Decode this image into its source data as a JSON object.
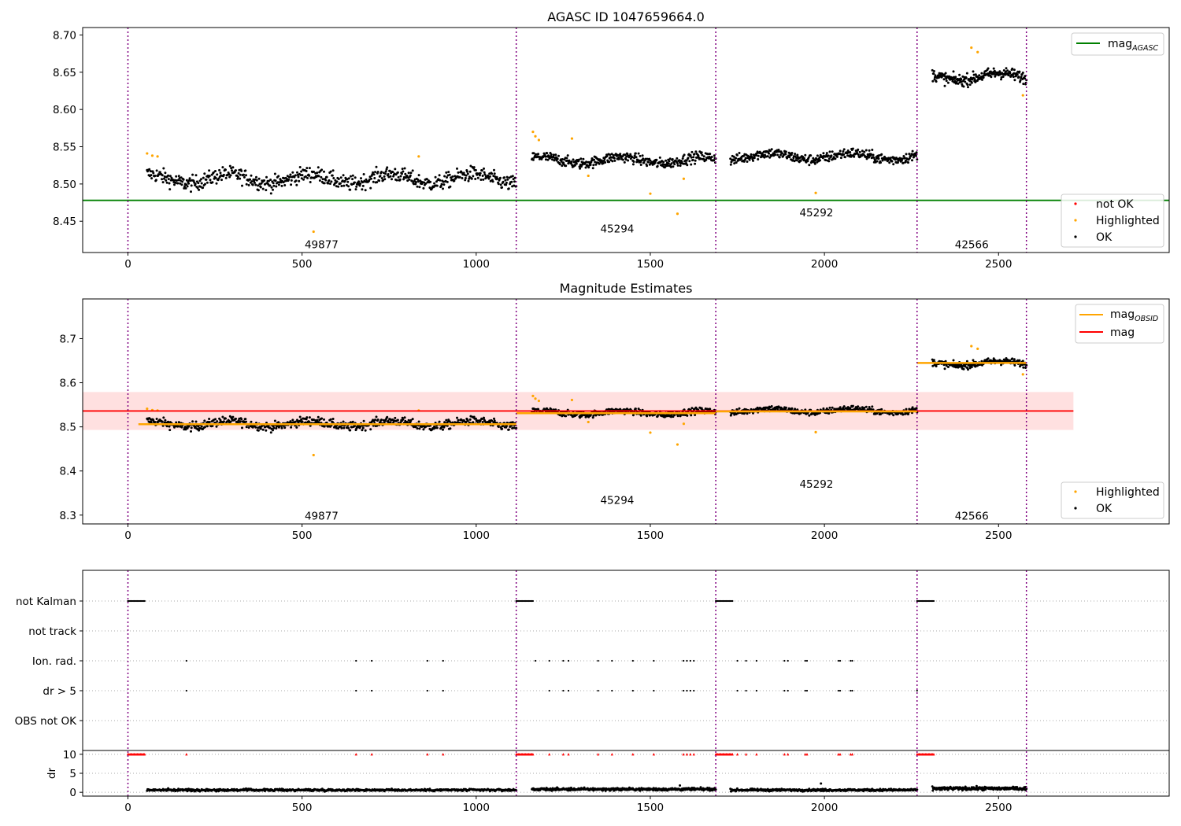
{
  "chart_data": [
    {
      "type": "scatter",
      "title": "AGASC ID 1047659664.0",
      "xlim": [
        -130,
        2990
      ],
      "ylim": [
        8.408,
        8.71
      ],
      "yticks": [
        "8.45",
        "8.50",
        "8.55",
        "8.60",
        "8.65",
        "8.70"
      ],
      "xticks": [
        "0",
        "500",
        "1000",
        "1500",
        "2000",
        "2500"
      ],
      "obs_boundaries": [
        0,
        1115,
        1688,
        2266,
        2580
      ],
      "obsids": [
        {
          "label": "49877",
          "x": 556,
          "y": 8.418
        },
        {
          "label": "45294",
          "x": 1405,
          "y": 8.439
        },
        {
          "label": "45292",
          "x": 1977,
          "y": 8.461
        },
        {
          "label": "42566",
          "x": 2423,
          "y": 8.418
        }
      ],
      "mag_agasc": 8.478,
      "segments": [
        {
          "x0": 55,
          "x1": 1115,
          "mean": 8.507,
          "spread": 0.013,
          "n": 650
        },
        {
          "x0": 1160,
          "x1": 1688,
          "mean": 8.532,
          "spread": 0.009,
          "n": 380
        },
        {
          "x0": 1730,
          "x1": 2266,
          "mean": 8.537,
          "spread": 0.009,
          "n": 380
        },
        {
          "x0": 2310,
          "x1": 2580,
          "mean": 8.644,
          "spread": 0.01,
          "n": 220
        }
      ],
      "highlighted": [
        [
          55,
          8.541
        ],
        [
          70,
          8.538
        ],
        [
          85,
          8.537
        ],
        [
          533,
          8.436
        ],
        [
          835,
          8.537
        ],
        [
          1163,
          8.57
        ],
        [
          1170,
          8.564
        ],
        [
          1180,
          8.559
        ],
        [
          1275,
          8.561
        ],
        [
          1322,
          8.511
        ],
        [
          1500,
          8.487
        ],
        [
          1578,
          8.46
        ],
        [
          1596,
          8.507
        ],
        [
          1975,
          8.488
        ],
        [
          2422,
          8.683
        ],
        [
          2440,
          8.677
        ],
        [
          2570,
          8.619
        ]
      ],
      "legend_top": [
        {
          "name": "mag",
          "sub": "AGASC",
          "color": "#008000"
        }
      ],
      "legend_bottom": [
        {
          "name": "not OK",
          "color": "#ff0000"
        },
        {
          "name": "Highlighted",
          "color": "#ffa500"
        },
        {
          "name": "OK",
          "color": "#000000"
        }
      ]
    },
    {
      "type": "scatter",
      "title": "Magnitude Estimates",
      "xlim": [
        -130,
        2990
      ],
      "ylim": [
        8.28,
        8.79
      ],
      "yticks": [
        "8.3",
        "8.4",
        "8.5",
        "8.6",
        "8.7"
      ],
      "xticks": [
        "0",
        "500",
        "1000",
        "1500",
        "2000",
        "2500"
      ],
      "obs_boundaries": [
        0,
        1115,
        1688,
        2266,
        2580
      ],
      "obsids": [
        {
          "label": "49877",
          "x": 556,
          "y": 8.297
        },
        {
          "label": "45294",
          "x": 1405,
          "y": 8.333
        },
        {
          "label": "45292",
          "x": 1977,
          "y": 8.369
        },
        {
          "label": "42566",
          "x": 2423,
          "y": 8.297
        }
      ],
      "mag": 8.536,
      "mag_band": [
        8.493,
        8.579
      ],
      "mag_band_x": [
        -130,
        2715
      ],
      "mag_obsid": [
        {
          "x0": 30,
          "x1": 1115,
          "value": 8.506
        },
        {
          "x0": 1115,
          "x1": 1688,
          "value": 8.531
        },
        {
          "x0": 1688,
          "x1": 2266,
          "value": 8.535
        },
        {
          "x0": 2266,
          "x1": 2580,
          "value": 8.645
        }
      ],
      "segments": [
        {
          "x0": 55,
          "x1": 1115,
          "mean": 8.507,
          "spread": 0.013,
          "n": 650
        },
        {
          "x0": 1160,
          "x1": 1688,
          "mean": 8.532,
          "spread": 0.009,
          "n": 380
        },
        {
          "x0": 1730,
          "x1": 2266,
          "mean": 8.537,
          "spread": 0.009,
          "n": 380
        },
        {
          "x0": 2310,
          "x1": 2580,
          "mean": 8.644,
          "spread": 0.01,
          "n": 220
        }
      ],
      "highlighted": [
        [
          55,
          8.541
        ],
        [
          70,
          8.538
        ],
        [
          85,
          8.537
        ],
        [
          533,
          8.436
        ],
        [
          835,
          8.537
        ],
        [
          1163,
          8.57
        ],
        [
          1170,
          8.564
        ],
        [
          1180,
          8.559
        ],
        [
          1275,
          8.561
        ],
        [
          1322,
          8.511
        ],
        [
          1500,
          8.487
        ],
        [
          1578,
          8.46
        ],
        [
          1596,
          8.507
        ],
        [
          1975,
          8.488
        ],
        [
          2422,
          8.683
        ],
        [
          2440,
          8.677
        ],
        [
          2570,
          8.619
        ]
      ],
      "legend_top": [
        {
          "name": "mag",
          "sub": "OBSID",
          "color": "#ffa500"
        },
        {
          "name": "mag",
          "sub": "",
          "color": "#ff0000"
        }
      ],
      "legend_bottom": [
        {
          "name": "Highlighted",
          "color": "#ffa500"
        },
        {
          "name": "OK",
          "color": "#000000"
        }
      ]
    },
    {
      "type": "scatter",
      "title": "",
      "xlim": [
        -130,
        2990
      ],
      "xticks": [
        "0",
        "500",
        "1000",
        "1500",
        "2000",
        "2500"
      ],
      "obs_boundaries": [
        0,
        1115,
        1688,
        2266,
        2580
      ],
      "flag_rows": [
        "not Kalman",
        "not track",
        "Ion. rad.",
        "dr > 5",
        "OBS not OK"
      ],
      "flags": {
        "not Kalman": [
          [
            0,
            50
          ],
          [
            1115,
            1165
          ],
          [
            1688,
            1738
          ],
          [
            2266,
            2316
          ]
        ],
        "not track": [],
        "Ion. rad.": [
          168,
          655,
          700,
          860,
          905,
          1170,
          1210,
          1250,
          1265,
          1350,
          1390,
          1450,
          1510,
          1595,
          1605,
          1615,
          1625,
          1750,
          1775,
          1805,
          1885,
          1895,
          1945,
          1950,
          2040,
          2045,
          2075,
          2080
        ],
        "dr > 5": [
          168,
          655,
          700,
          860,
          905,
          1210,
          1250,
          1265,
          1350,
          1390,
          1450,
          1510,
          1595,
          1605,
          1615,
          1625,
          1750,
          1775,
          1805,
          1885,
          1895,
          1945,
          1950,
          2040,
          2045,
          2075,
          2080,
          2266
        ],
        "OBS not OK": []
      },
      "dr_ylabel": "dr",
      "dr_ylim": [
        -1,
        11
      ],
      "dr_yticks": [
        "0",
        "5",
        "10"
      ],
      "dr_clipped": [
        [
          0,
          50
        ],
        [
          1115,
          1165
        ],
        [
          1688,
          1738
        ],
        [
          2266,
          2316
        ]
      ],
      "dr_clipped_points": [
        168,
        655,
        700,
        860,
        905,
        1210,
        1250,
        1265,
        1350,
        1390,
        1450,
        1510,
        1595,
        1605,
        1615,
        1625,
        1750,
        1775,
        1805,
        1885,
        1895,
        1945,
        1950,
        2040,
        2045,
        2075,
        2080
      ],
      "dr_segments": [
        {
          "x0": 55,
          "x1": 1115,
          "level": 0.6,
          "spread": 0.4,
          "n": 650
        },
        {
          "x0": 1160,
          "x1": 1688,
          "level": 0.8,
          "spread": 0.5,
          "n": 380
        },
        {
          "x0": 1730,
          "x1": 2266,
          "level": 0.6,
          "spread": 0.4,
          "n": 380
        },
        {
          "x0": 2310,
          "x1": 2580,
          "level": 1.0,
          "spread": 0.6,
          "n": 220
        }
      ],
      "dr_outliers": [
        [
          1585,
          1.8
        ],
        [
          1990,
          2.3
        ]
      ]
    }
  ]
}
